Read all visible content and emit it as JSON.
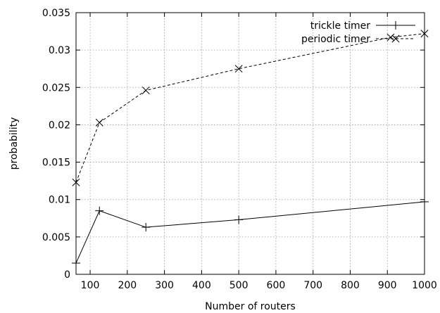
{
  "chart_data": {
    "type": "line",
    "title": "",
    "xlabel": "Number of routers",
    "ylabel": "probability",
    "xlim": [
      62,
      1000
    ],
    "ylim": [
      0,
      0.035
    ],
    "xticks": [
      100,
      200,
      300,
      400,
      500,
      600,
      700,
      800,
      900,
      1000
    ],
    "xtick_labels": [
      "100",
      "200",
      "300",
      "400",
      "500",
      "600",
      "700",
      "800",
      "900",
      "1000"
    ],
    "yticks": [
      0,
      0.005,
      0.01,
      0.015,
      0.02,
      0.025,
      0.03,
      0.035
    ],
    "ytick_labels": [
      "0",
      "0.005",
      "0.01",
      "0.015",
      "0.02",
      "0.025",
      "0.03",
      "0.035"
    ],
    "grid": true,
    "legend_position": "top-right",
    "series": [
      {
        "name": "trickle timer",
        "line_style": "solid",
        "marker": "plus",
        "color": "#000000",
        "x": [
          62,
          125,
          250,
          500,
          1000
        ],
        "y": [
          0.0015,
          0.0085,
          0.0063,
          0.0073,
          0.0097
        ]
      },
      {
        "name": "periodic timer",
        "line_style": "dashed",
        "marker": "x",
        "color": "#000000",
        "x": [
          62,
          125,
          250,
          500,
          909,
          1000
        ],
        "y": [
          0.0123,
          0.0203,
          0.0246,
          0.0275,
          0.0317,
          0.0322
        ]
      }
    ]
  }
}
